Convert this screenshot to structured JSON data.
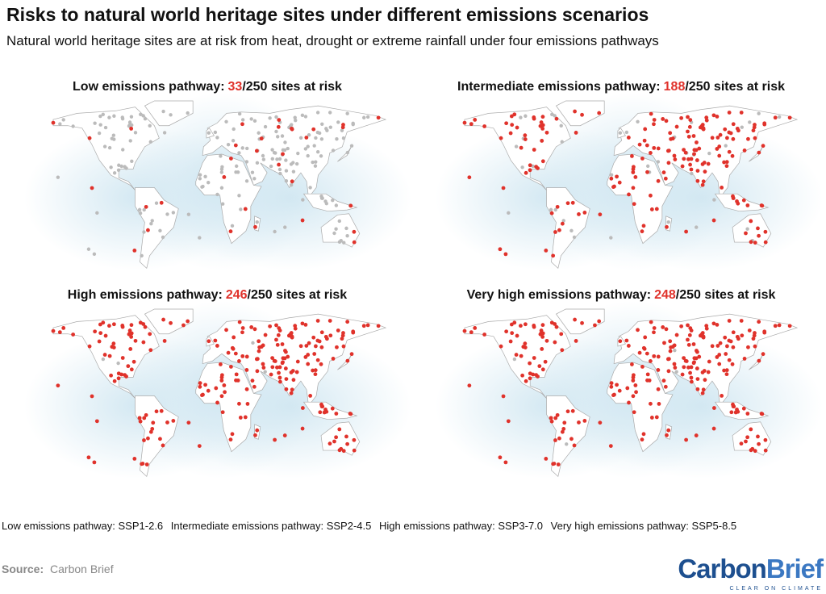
{
  "title": "Risks to natural world heritage sites under different emissions scenarios",
  "subtitle": "Natural world heritage sites are at risk from heat, drought or extreme rainfall under four emissions pathways",
  "panels": [
    {
      "label": "Low emissions pathway:",
      "at_risk": 33,
      "of_total": "/250 sites at risk"
    },
    {
      "label": "Intermediate emissions pathway:",
      "at_risk": 188,
      "of_total": "/250 sites at risk"
    },
    {
      "label": "High emissions pathway:",
      "at_risk": 246,
      "of_total": "/250 sites at risk"
    },
    {
      "label": "Very high emissions pathway:",
      "at_risk": 248,
      "of_total": "/250 sites at risk"
    }
  ],
  "footnote": [
    "Low emissions pathway: SSP1-2.6",
    "Intermediate emissions pathway: SSP2-4.5",
    "High emissions pathway: SSP3-7.0",
    "Very high emissions pathway: SSP5-8.5"
  ],
  "source": {
    "label": "Source:",
    "text": "Carbon Brief"
  },
  "logo": {
    "part_a": "Carbon",
    "part_b": "Brief",
    "tagline": "CLEAR ON CLIMATE"
  }
}
